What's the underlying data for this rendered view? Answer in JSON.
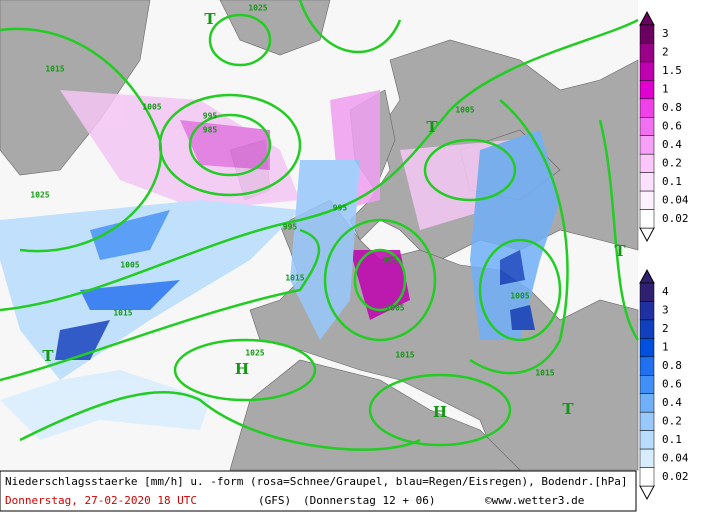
{
  "map": {
    "labels": [
      "1025",
      "1015",
      "1005",
      "995",
      "985",
      "995",
      "1005",
      "995",
      "1015",
      "1005",
      "1015",
      "1025",
      "1015",
      "1005",
      "1005",
      "1015",
      "995",
      "1025",
      "H",
      "H",
      "T",
      "T",
      "T",
      "T",
      "T"
    ],
    "snow_legend": [
      "3",
      "2",
      "1.5",
      "1",
      "0.8",
      "0.6",
      "0.4",
      "0.2",
      "0.1",
      "0.04",
      "0.02"
    ],
    "rain_legend": [
      "4",
      "3",
      "2",
      "1",
      "0.8",
      "0.6",
      "0.4",
      "0.2",
      "0.1",
      "0.04",
      "0.02"
    ]
  },
  "footer": {
    "line1": "Niederschlagsstaerke [mm/h] u. -form (rosa=Schnee/Graupel, blau=Regen/Eisregen), Bodendr.[hPa]",
    "date": "Donnerstag, 27-02-2020  18 UTC",
    "model": "(GFS)",
    "run": "(Donnerstag 12 + 06)",
    "site": "©www.wetter3.de"
  }
}
